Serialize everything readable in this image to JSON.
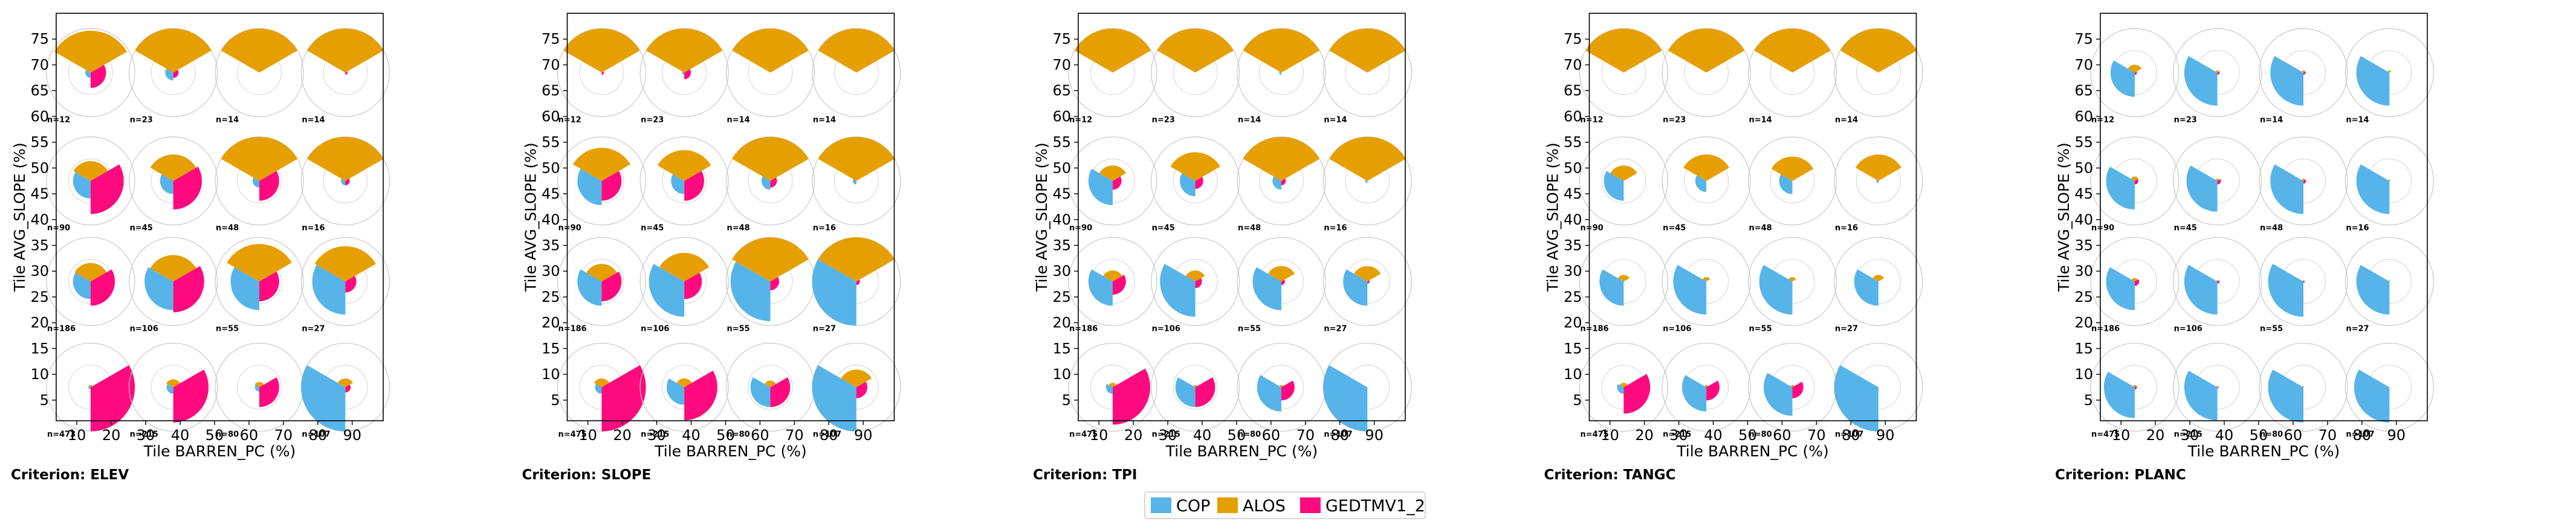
{
  "chart_data": {
    "type": "polar-sector-grid",
    "panels": [
      {
        "criterion_label": "Criterion: ELEV",
        "xlabel": "Tile BARREN_PC (%)",
        "ylabel": "Tile AVG_SLOPE (%)",
        "xticks": [
          "10",
          "20",
          "30",
          "40",
          "50",
          "60",
          "70",
          "80",
          "90"
        ],
        "yticks": [
          "5",
          "10",
          "15",
          "20",
          "25",
          "30",
          "35",
          "40",
          "45",
          "50",
          "55",
          "60",
          "65",
          "70",
          "75"
        ],
        "cells": [
          {
            "n": "n=12",
            "slices": [
              0.12,
              0.95,
              0.35
            ]
          },
          {
            "n": "n=23",
            "slices": [
              0.18,
              1.0,
              0.12
            ]
          },
          {
            "n": "n=14",
            "slices": [
              0.0,
              1.0,
              0.0
            ]
          },
          {
            "n": "n=14",
            "slices": [
              0.0,
              1.0,
              0.05
            ]
          },
          {
            "n": "n=90",
            "slices": [
              0.4,
              0.45,
              0.75
            ]
          },
          {
            "n": "n=45",
            "slices": [
              0.3,
              0.6,
              0.65
            ]
          },
          {
            "n": "n=48",
            "slices": [
              0.15,
              1.0,
              0.45
            ]
          },
          {
            "n": "n=16",
            "slices": [
              0.1,
              1.0,
              0.1
            ]
          },
          {
            "n": "n=186",
            "slices": [
              0.4,
              0.42,
              0.55
            ]
          },
          {
            "n": "n=106",
            "slices": [
              0.65,
              0.6,
              0.7
            ]
          },
          {
            "n": "n=55",
            "slices": [
              0.65,
              0.85,
              0.45
            ]
          },
          {
            "n": "n=27",
            "slices": [
              0.75,
              0.8,
              0.25
            ]
          },
          {
            "n": "n=473",
            "slices": [
              0.05,
              0.05,
              1.0
            ]
          },
          {
            "n": "n=215",
            "slices": [
              0.15,
              0.18,
              0.8
            ]
          },
          {
            "n": "n=80",
            "slices": [
              0.1,
              0.12,
              0.45
            ]
          },
          {
            "n": "n=107",
            "slices": [
              1.0,
              0.2,
              0.12
            ]
          }
        ]
      },
      {
        "criterion_label": "Criterion: SLOPE",
        "xlabel": "Tile BARREN_PC (%)",
        "ylabel": "Tile AVG_SLOPE (%)",
        "xticks": [
          "10",
          "20",
          "30",
          "40",
          "50",
          "60",
          "70",
          "80",
          "90"
        ],
        "yticks": [
          "5",
          "10",
          "15",
          "20",
          "25",
          "30",
          "35",
          "40",
          "45",
          "50",
          "55",
          "60",
          "65",
          "70",
          "75"
        ],
        "cells": [
          {
            "n": "n=12",
            "slices": [
              0.0,
              1.0,
              0.05
            ]
          },
          {
            "n": "n=23",
            "slices": [
              0.05,
              1.0,
              0.15
            ]
          },
          {
            "n": "n=14",
            "slices": [
              0.0,
              1.0,
              0.0
            ]
          },
          {
            "n": "n=14",
            "slices": [
              0.0,
              1.0,
              0.0
            ]
          },
          {
            "n": "n=90",
            "slices": [
              0.55,
              0.75,
              0.45
            ]
          },
          {
            "n": "n=45",
            "slices": [
              0.3,
              0.7,
              0.45
            ]
          },
          {
            "n": "n=48",
            "slices": [
              0.2,
              1.0,
              0.15
            ]
          },
          {
            "n": "n=16",
            "slices": [
              0.08,
              1.0,
              0.0
            ]
          },
          {
            "n": "n=186",
            "slices": [
              0.55,
              0.4,
              0.45
            ]
          },
          {
            "n": "n=106",
            "slices": [
              0.8,
              0.65,
              0.4
            ]
          },
          {
            "n": "n=55",
            "slices": [
              0.9,
              1.0,
              0.2
            ]
          },
          {
            "n": "n=27",
            "slices": [
              1.0,
              1.0,
              0.08
            ]
          },
          {
            "n": "n=475",
            "slices": [
              0.15,
              0.2,
              1.0
            ]
          },
          {
            "n": "n=215",
            "slices": [
              0.4,
              0.2,
              0.75
            ]
          },
          {
            "n": "n=80",
            "slices": [
              0.45,
              0.15,
              0.45
            ]
          },
          {
            "n": "n=107",
            "slices": [
              1.0,
              0.4,
              0.25
            ]
          }
        ]
      },
      {
        "criterion_label": "Criterion: TPI",
        "xlabel": "Tile BARREN_PC (%)",
        "ylabel": "Tile AVG_SLOPE (%)",
        "xticks": [
          "10",
          "20",
          "30",
          "40",
          "50",
          "60",
          "70",
          "80",
          "90"
        ],
        "yticks": [
          "5",
          "10",
          "15",
          "20",
          "25",
          "30",
          "35",
          "40",
          "45",
          "50",
          "55",
          "60",
          "65",
          "70",
          "75"
        ],
        "cells": [
          {
            "n": "n=12",
            "slices": [
              0.0,
              1.0,
              0.0
            ]
          },
          {
            "n": "n=23",
            "slices": [
              0.0,
              1.0,
              0.0
            ]
          },
          {
            "n": "n=14",
            "slices": [
              0.05,
              1.0,
              0.0
            ]
          },
          {
            "n": "n=14",
            "slices": [
              0.0,
              1.0,
              0.0
            ]
          },
          {
            "n": "n=90",
            "slices": [
              0.55,
              0.35,
              0.2
            ]
          },
          {
            "n": "n=45",
            "slices": [
              0.35,
              0.65,
              0.18
            ]
          },
          {
            "n": "n=48",
            "slices": [
              0.2,
              1.0,
              0.1
            ]
          },
          {
            "n": "n=16",
            "slices": [
              0.05,
              1.0,
              0.0
            ]
          },
          {
            "n": "n=186",
            "slices": [
              0.55,
              0.25,
              0.3
            ]
          },
          {
            "n": "n=106",
            "slices": [
              0.8,
              0.25,
              0.15
            ]
          },
          {
            "n": "n=55",
            "slices": [
              0.65,
              0.35,
              0.08
            ]
          },
          {
            "n": "n=27",
            "slices": [
              0.55,
              0.35,
              0.05
            ]
          },
          {
            "n": "n=475",
            "slices": [
              0.15,
              0.1,
              0.85
            ]
          },
          {
            "n": "n=215",
            "slices": [
              0.45,
              0.05,
              0.45
            ]
          },
          {
            "n": "n=80",
            "slices": [
              0.55,
              0.05,
              0.3
            ]
          },
          {
            "n": "n=107",
            "slices": [
              1.0,
              0.0,
              0.0
            ]
          }
        ]
      },
      {
        "criterion_label": "Criterion: TANGC",
        "xlabel": "Tile BARREN_PC (%)",
        "ylabel": "Tile AVG_SLOPE (%)",
        "xticks": [
          "10",
          "20",
          "30",
          "40",
          "50",
          "60",
          "70",
          "80",
          "90"
        ],
        "yticks": [
          "5",
          "10",
          "15",
          "20",
          "25",
          "30",
          "35",
          "40",
          "45",
          "50",
          "55",
          "60",
          "65",
          "70",
          "75"
        ],
        "cells": [
          {
            "n": "n=12",
            "slices": [
              0.0,
              1.0,
              0.0
            ]
          },
          {
            "n": "n=23",
            "slices": [
              0.0,
              1.0,
              0.0
            ]
          },
          {
            "n": "n=14",
            "slices": [
              0.0,
              1.0,
              0.0
            ]
          },
          {
            "n": "n=14",
            "slices": [
              0.0,
              1.0,
              0.0
            ]
          },
          {
            "n": "n=90",
            "slices": [
              0.45,
              0.35,
              0.0
            ]
          },
          {
            "n": "n=45",
            "slices": [
              0.25,
              0.6,
              0.0
            ]
          },
          {
            "n": "n=48",
            "slices": [
              0.3,
              0.55,
              0.0
            ]
          },
          {
            "n": "n=16",
            "slices": [
              0.05,
              0.6,
              0.0
            ]
          },
          {
            "n": "n=186",
            "slices": [
              0.55,
              0.15,
              0.0
            ]
          },
          {
            "n": "n=106",
            "slices": [
              0.75,
              0.1,
              0.0
            ]
          },
          {
            "n": "n=55",
            "slices": [
              0.75,
              0.1,
              0.0
            ]
          },
          {
            "n": "n=27",
            "slices": [
              0.55,
              0.15,
              0.0
            ]
          },
          {
            "n": "n=475",
            "slices": [
              0.15,
              0.1,
              0.6
            ]
          },
          {
            "n": "n=215",
            "slices": [
              0.55,
              0.05,
              0.3
            ]
          },
          {
            "n": "n=80",
            "slices": [
              0.65,
              0.05,
              0.25
            ]
          },
          {
            "n": "n=107",
            "slices": [
              1.0,
              0.0,
              0.0
            ]
          }
        ]
      },
      {
        "criterion_label": "Criterion: PLANC",
        "xlabel": "Tile BARREN_PC (%)",
        "ylabel": "Tile AVG_SLOPE (%)",
        "xticks": [
          "10",
          "20",
          "30",
          "40",
          "50",
          "60",
          "70",
          "80",
          "90"
        ],
        "yticks": [
          "5",
          "10",
          "15",
          "20",
          "25",
          "30",
          "35",
          "40",
          "45",
          "50",
          "55",
          "60",
          "65",
          "70",
          "75"
        ],
        "cells": [
          {
            "n": "n=12",
            "slices": [
              0.55,
              0.18,
              0.05
            ]
          },
          {
            "n": "n=23",
            "slices": [
              0.75,
              0.05,
              0.05
            ]
          },
          {
            "n": "n=14",
            "slices": [
              0.75,
              0.05,
              0.05
            ]
          },
          {
            "n": "n=14",
            "slices": [
              0.75,
              0.05,
              0.0
            ]
          },
          {
            "n": "n=90",
            "slices": [
              0.65,
              0.1,
              0.08
            ]
          },
          {
            "n": "n=45",
            "slices": [
              0.7,
              0.05,
              0.08
            ]
          },
          {
            "n": "n=48",
            "slices": [
              0.75,
              0.05,
              0.06
            ]
          },
          {
            "n": "n=16",
            "slices": [
              0.75,
              0.03,
              0.0
            ]
          },
          {
            "n": "n=186",
            "slices": [
              0.65,
              0.08,
              0.1
            ]
          },
          {
            "n": "n=106",
            "slices": [
              0.75,
              0.03,
              0.05
            ]
          },
          {
            "n": "n=55",
            "slices": [
              0.8,
              0.02,
              0.03
            ]
          },
          {
            "n": "n=27",
            "slices": [
              0.75,
              0.02,
              0.0
            ]
          },
          {
            "n": "n=475",
            "slices": [
              0.7,
              0.05,
              0.05
            ]
          },
          {
            "n": "n=215",
            "slices": [
              0.75,
              0.03,
              0.02
            ]
          },
          {
            "n": "n=80",
            "slices": [
              0.8,
              0.02,
              0.0
            ]
          },
          {
            "n": "n=107",
            "slices": [
              0.8,
              0.0,
              0.0
            ]
          }
        ]
      }
    ],
    "legend": {
      "placement": "bottom-center",
      "entries": [
        {
          "label": "COP",
          "color": "#56b4e9"
        },
        {
          "label": "ALOS",
          "color": "#e69f00"
        },
        {
          "label": "GEDTMV1_2",
          "color": "#ff0a7f"
        }
      ]
    },
    "slice_order": [
      "COP",
      "ALOS",
      "GEDTMV1_2"
    ],
    "slice_units": "relative radius (0-1)"
  }
}
